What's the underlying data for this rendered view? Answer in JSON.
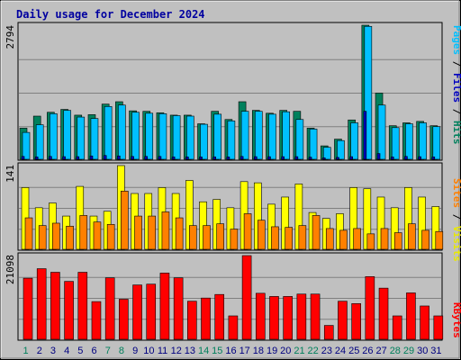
{
  "title": "Daily usage for December 2024",
  "x_labels": [
    "1",
    "2",
    "3",
    "4",
    "5",
    "6",
    "7",
    "8",
    "9",
    "10",
    "11",
    "12",
    "13",
    "14",
    "15",
    "16",
    "17",
    "18",
    "19",
    "20",
    "21",
    "22",
    "23",
    "24",
    "25",
    "26",
    "27",
    "28",
    "29",
    "30",
    "31"
  ],
  "weekend_days": [
    1,
    7,
    8,
    14,
    15,
    21,
    22,
    28,
    29
  ],
  "colors": {
    "background": "#c0c0c0",
    "plot_bg": "#c0c0c0",
    "grid": "#808080",
    "title": "#0000a0",
    "hits": "#00805c",
    "files": "#00c0ff",
    "pages": "#0000c0",
    "visits": "#ffff00",
    "sites": "#ff8000",
    "kbytes": "#ff0000",
    "weekday_label": "#000080",
    "weekend_label": "#00805c"
  },
  "panels": {
    "top": {
      "ymax_label": "2794",
      "legend": [
        {
          "text": "Pages",
          "color": "#00c0ff"
        },
        {
          "text": " / ",
          "color": "#000000"
        },
        {
          "text": "Files",
          "color": "#0000c0"
        },
        {
          "text": " / ",
          "color": "#000000"
        },
        {
          "text": "Hits",
          "color": "#00805c"
        }
      ]
    },
    "middle": {
      "ymax_label": "141",
      "legend": [
        {
          "text": "Sites",
          "color": "#ff8000"
        },
        {
          "text": " / ",
          "color": "#000000"
        },
        {
          "text": "Visits",
          "color": "#e8e800"
        }
      ]
    },
    "bottom": {
      "ymax_label": "21098",
      "legend": [
        {
          "text": "KBytes",
          "color": "#ff0000"
        }
      ]
    }
  },
  "chart_data": [
    {
      "type": "bar",
      "title": "Daily usage for December 2024",
      "categories": [
        "1",
        "2",
        "3",
        "4",
        "5",
        "6",
        "7",
        "8",
        "9",
        "10",
        "11",
        "12",
        "13",
        "14",
        "15",
        "16",
        "17",
        "18",
        "19",
        "20",
        "21",
        "22",
        "23",
        "24",
        "25",
        "26",
        "27",
        "28",
        "29",
        "30",
        "31"
      ],
      "ylim": [
        0,
        2794
      ],
      "series": [
        {
          "name": "Hits",
          "values": [
            650,
            900,
            980,
            1040,
            920,
            930,
            1150,
            1200,
            1010,
            1000,
            970,
            920,
            920,
            740,
            1000,
            830,
            1200,
            1020,
            960,
            1020,
            1000,
            650,
            280,
            420,
            820,
            2794,
            1380,
            700,
            760,
            790,
            700
          ]
        },
        {
          "name": "Files",
          "values": [
            560,
            720,
            950,
            1020,
            880,
            850,
            1100,
            1130,
            980,
            960,
            950,
            910,
            900,
            730,
            940,
            800,
            1000,
            1000,
            940,
            990,
            830,
            630,
            250,
            390,
            760,
            2770,
            1130,
            660,
            740,
            760,
            680
          ]
        },
        {
          "name": "Pages",
          "values": [
            60,
            50,
            60,
            55,
            55,
            70,
            80,
            70,
            60,
            60,
            60,
            50,
            50,
            50,
            50,
            50,
            60,
            55,
            55,
            55,
            55,
            45,
            30,
            40,
            55,
            1000,
            120,
            50,
            60,
            55,
            50
          ]
        }
      ]
    },
    {
      "type": "bar",
      "categories": [
        "1",
        "2",
        "3",
        "4",
        "5",
        "6",
        "7",
        "8",
        "9",
        "10",
        "11",
        "12",
        "13",
        "14",
        "15",
        "16",
        "17",
        "18",
        "19",
        "20",
        "21",
        "22",
        "23",
        "24",
        "25",
        "26",
        "27",
        "28",
        "29",
        "30",
        "31"
      ],
      "ylim": [
        0,
        141
      ],
      "series": [
        {
          "name": "Visits",
          "values": [
            104,
            70,
            78,
            56,
            106,
            56,
            64,
            141,
            94,
            94,
            104,
            94,
            116,
            80,
            84,
            70,
            114,
            112,
            76,
            88,
            110,
            62,
            52,
            60,
            104,
            102,
            88,
            70,
            104,
            88,
            72
          ]
        },
        {
          "name": "Sites",
          "values": [
            53,
            40,
            44,
            39,
            57,
            46,
            42,
            98,
            56,
            56,
            63,
            53,
            40,
            40,
            43,
            34,
            60,
            49,
            38,
            37,
            40,
            57,
            35,
            32,
            35,
            26,
            35,
            28,
            43,
            32,
            30
          ]
        }
      ]
    },
    {
      "type": "bar",
      "categories": [
        "1",
        "2",
        "3",
        "4",
        "5",
        "6",
        "7",
        "8",
        "9",
        "10",
        "11",
        "12",
        "13",
        "14",
        "15",
        "16",
        "17",
        "18",
        "19",
        "20",
        "21",
        "22",
        "23",
        "24",
        "25",
        "26",
        "27",
        "28",
        "29",
        "30",
        "31"
      ],
      "ylim": [
        0,
        21098
      ],
      "series": [
        {
          "name": "KBytes",
          "values": [
            15400,
            17800,
            16900,
            14600,
            16900,
            9500,
            15500,
            10100,
            13700,
            13900,
            16700,
            15500,
            9600,
            10400,
            11300,
            5900,
            21098,
            11600,
            10800,
            10800,
            11400,
            11400,
            3500,
            9600,
            9000,
            15800,
            12900,
            5900,
            11700,
            8400,
            5900
          ]
        }
      ]
    }
  ]
}
